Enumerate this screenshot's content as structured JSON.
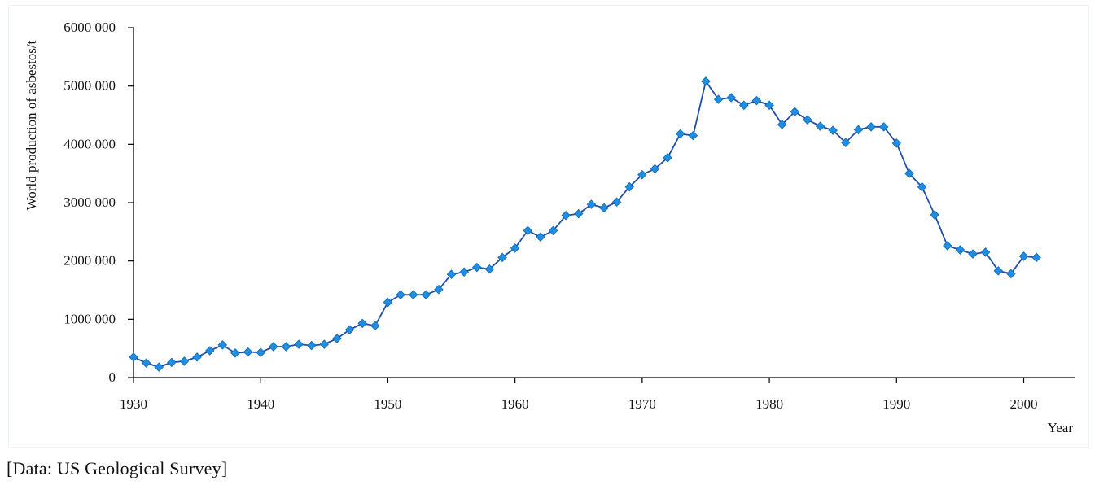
{
  "source_note": "[Data: US Geological Survey]",
  "colors": {
    "line": "#1f4fa8",
    "marker": "#1e8fe0",
    "marker_edge": "#1565b8",
    "axis": "#000000"
  },
  "chart_data": {
    "type": "line",
    "xlabel": "Year",
    "ylabel": "World production of asbestos/t",
    "xlim": [
      1930,
      2004
    ],
    "ylim": [
      0,
      6000000
    ],
    "x_ticks": [
      1930,
      1940,
      1950,
      1960,
      1970,
      1980,
      1990,
      2000
    ],
    "y_ticks": [
      0,
      1000000,
      2000000,
      3000000,
      4000000,
      5000000,
      6000000
    ],
    "y_tick_labels": [
      "0",
      "1000 000",
      "2000 000",
      "3000 000",
      "4000 000",
      "5000 000",
      "6000 000"
    ],
    "marker": "diamond",
    "grid": false,
    "x": [
      1930,
      1931,
      1932,
      1933,
      1934,
      1935,
      1936,
      1937,
      1938,
      1939,
      1940,
      1941,
      1942,
      1943,
      1944,
      1945,
      1946,
      1947,
      1948,
      1949,
      1950,
      1951,
      1952,
      1953,
      1954,
      1955,
      1956,
      1957,
      1958,
      1959,
      1960,
      1961,
      1962,
      1963,
      1964,
      1965,
      1966,
      1967,
      1968,
      1969,
      1970,
      1971,
      1972,
      1973,
      1974,
      1975,
      1976,
      1977,
      1978,
      1979,
      1980,
      1981,
      1982,
      1983,
      1984,
      1985,
      1986,
      1987,
      1988,
      1989,
      1990,
      1991,
      1992,
      1993,
      1994,
      1995,
      1996,
      1997,
      1998,
      1999,
      2000,
      2001
    ],
    "y": [
      350000,
      250000,
      180000,
      260000,
      280000,
      350000,
      460000,
      560000,
      420000,
      440000,
      430000,
      530000,
      530000,
      570000,
      550000,
      570000,
      670000,
      820000,
      930000,
      890000,
      1290000,
      1420000,
      1420000,
      1420000,
      1510000,
      1770000,
      1810000,
      1890000,
      1860000,
      2060000,
      2220000,
      2520000,
      2410000,
      2520000,
      2780000,
      2810000,
      2970000,
      2910000,
      3010000,
      3270000,
      3480000,
      3580000,
      3770000,
      4180000,
      4150000,
      5080000,
      4770000,
      4800000,
      4670000,
      4750000,
      4670000,
      4340000,
      4560000,
      4420000,
      4310000,
      4240000,
      4030000,
      4250000,
      4300000,
      4300000,
      4020000,
      3500000,
      3270000,
      2790000,
      2260000,
      2190000,
      2120000,
      2150000,
      1830000,
      1780000,
      2080000,
      2060000
    ]
  }
}
